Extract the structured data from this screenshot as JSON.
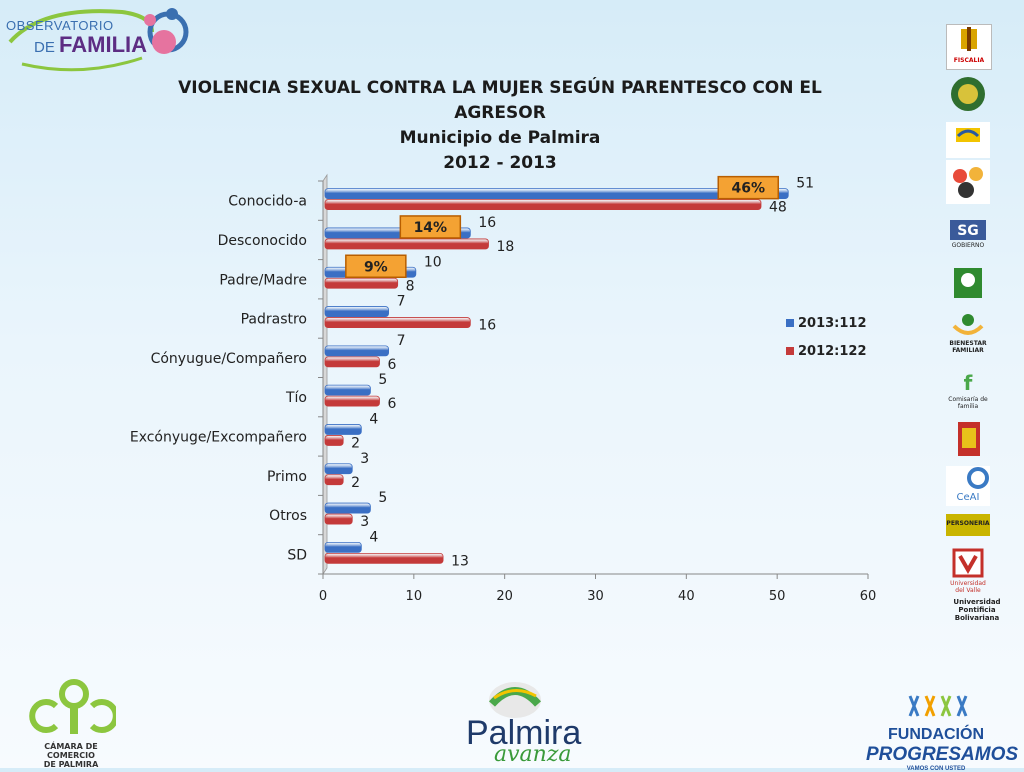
{
  "header": {
    "logo_line1": "OBSERVATORIO",
    "logo_line2_a": "DE ",
    "logo_line2_b": "FAMILIA"
  },
  "chart_data": {
    "type": "bar",
    "orientation": "horizontal",
    "title": "VIOLENCIA SEXUAL CONTRA LA MUJER SEGÚN PARENTESCO CON EL AGRESOR",
    "subtitle1": "Municipio de Palmira",
    "subtitle2": "2012 - 2013",
    "categories": [
      "Conocido-a",
      "Desconocido",
      "Padre/Madre",
      "Padrastro",
      "Cónyugue/Compañero",
      "Tío",
      "Excónyuge/Excompañero",
      "Primo",
      "Otros",
      "SD"
    ],
    "series": [
      {
        "name": "2013:112",
        "color": "#3a6fc4",
        "values": [
          51,
          16,
          10,
          7,
          7,
          5,
          4,
          3,
          5,
          4
        ]
      },
      {
        "name": "2012:122",
        "color": "#c43a3a",
        "values": [
          48,
          18,
          8,
          16,
          6,
          6,
          2,
          2,
          3,
          13
        ]
      }
    ],
    "xlim": [
      0,
      60
    ],
    "xticks": [
      0,
      10,
      20,
      30,
      40,
      50,
      60
    ],
    "legend_position": "right",
    "annotations": [
      {
        "text": "46%",
        "category": "Conocido-a"
      },
      {
        "text": "14%",
        "category": "Desconocido"
      },
      {
        "text": "9%",
        "category": "Padre/Madre"
      }
    ]
  },
  "side_logos": [
    "FISCALIA",
    "",
    "",
    "",
    "GOBIERNO",
    "",
    "BIENESTAR FAMILIAR",
    "Comisaría de familia",
    "",
    "CeAI",
    "PERSONERIA",
    "Universidad del Valle",
    "Universidad Pontificia Bolivariana"
  ],
  "footer": {
    "ccp_line1": "CÁMARA DE COMERCIO",
    "ccp_line2": "DE PALMIRA",
    "palmira_word": "Palmira",
    "palmira_sub": "avanza",
    "fund_line1": "FUNDACIÓN",
    "fund_line2": "PROGRESAMOS",
    "fund_line3": "VAMOS CON USTED"
  }
}
